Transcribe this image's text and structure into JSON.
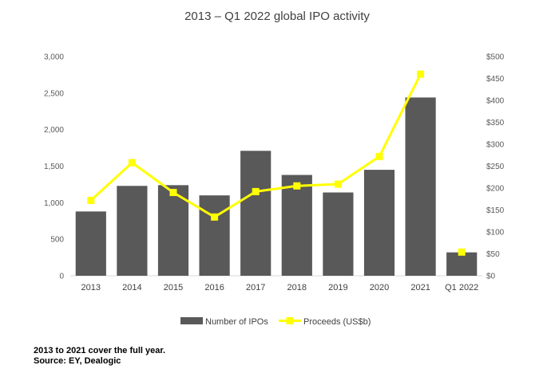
{
  "chart_data": {
    "type": "bar+line",
    "title": "2013 – Q1 2022 global IPO activity",
    "categories": [
      "2013",
      "2014",
      "2015",
      "2016",
      "2017",
      "2018",
      "2019",
      "2020",
      "2021",
      "Q1 2022"
    ],
    "series": [
      {
        "name": "Number of IPOs",
        "type": "bar",
        "axis": "left",
        "color": "#595959",
        "values": [
          880,
          1230,
          1240,
          1100,
          1710,
          1380,
          1140,
          1450,
          2440,
          320
        ]
      },
      {
        "name": "Proceeds (US$b)",
        "type": "line",
        "axis": "right",
        "color": "#FFFF00",
        "values": [
          172,
          258,
          190,
          134,
          192,
          205,
          209,
          272,
          460,
          54
        ]
      }
    ],
    "y_left": {
      "min": 0,
      "max": 3000,
      "ticks": [
        "0",
        "500",
        "1,000",
        "1,500",
        "2,000",
        "2,500",
        "3,000"
      ]
    },
    "y_right": {
      "min": 0,
      "max": 500,
      "ticks": [
        "$0",
        "$50",
        "$100",
        "$150",
        "$200",
        "$250",
        "$300",
        "$350",
        "$400",
        "$450",
        "$500"
      ]
    },
    "legend_position": "bottom",
    "grid": false
  },
  "footnotes": [
    "2013 to 2021 cover the full year.",
    "Source: EY, Dealogic"
  ]
}
